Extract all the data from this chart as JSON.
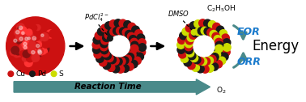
{
  "bg_color": "#ffffff",
  "cu_color": "#cc1111",
  "pd_color": "#1a1a1a",
  "s_color": "#ccdd00",
  "arrow_color": "#4a8a8a",
  "eor_color": "#1a7acc",
  "orr_color": "#1a7acc",
  "legend_labels": [
    "Cu",
    "Pd",
    "S"
  ],
  "legend_colors": [
    "#cc1111",
    "#1a1a1a",
    "#ccdd00"
  ],
  "figsize": [
    3.78,
    1.26
  ],
  "dpi": 100
}
